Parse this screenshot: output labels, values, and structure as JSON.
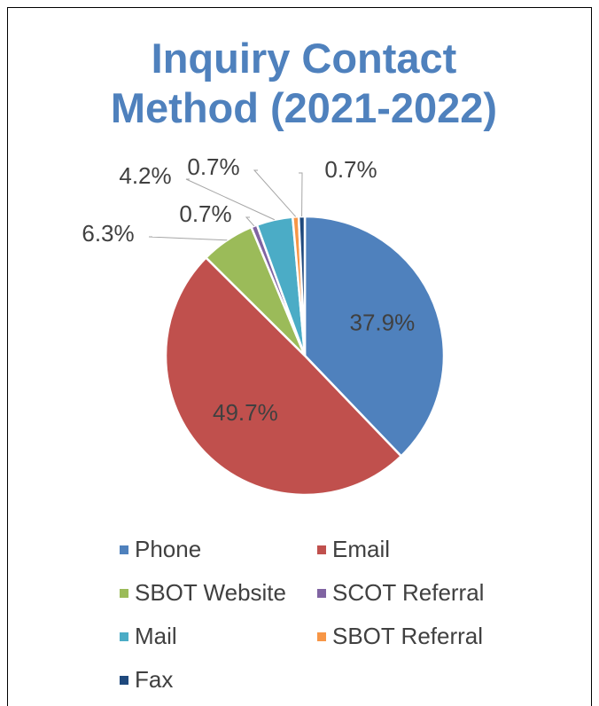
{
  "chart_data": {
    "type": "pie",
    "title": "Inquiry Contact Method (2021-2022)",
    "categories": [
      "Phone",
      "Email",
      "SBOT Website",
      "SCOT Referral",
      "Mail",
      "SBOT Referral",
      "Fax"
    ],
    "values": [
      37.9,
      49.7,
      6.3,
      0.7,
      4.2,
      0.7,
      0.7
    ],
    "value_labels": [
      "37.9%",
      "49.7%",
      "6.3%",
      "0.7%",
      "4.2%",
      "0.7%",
      "0.7%"
    ],
    "colors": [
      "#4f81bd",
      "#c0504d",
      "#9bbb59",
      "#8064a2",
      "#4bacc6",
      "#f79646",
      "#1f497d"
    ],
    "legend": "bottom"
  }
}
